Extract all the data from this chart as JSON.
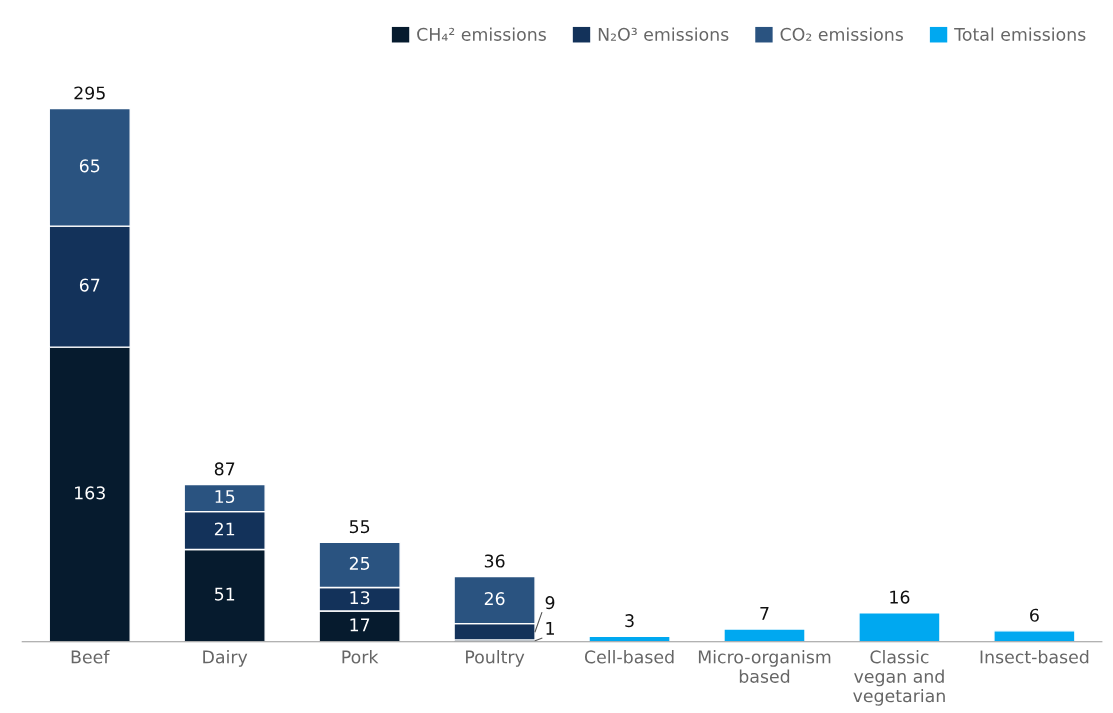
{
  "chart_data": {
    "type": "bar",
    "stacked": true,
    "legend": "top right",
    "grid": false,
    "categories": [
      "Beef",
      "Dairy",
      "Pork",
      "Poultry",
      "Cell-based",
      "Micro-organism\nbased",
      "Classic\nvegan and\nvegetarian",
      "Insect-based"
    ],
    "series": [
      {
        "name": "CH₄² emissions",
        "color": "#061b2e",
        "values": [
          163,
          51,
          17,
          1,
          null,
          null,
          null,
          null
        ],
        "value_labels": [
          "163",
          "51",
          "17",
          "1",
          null,
          null,
          null,
          null
        ]
      },
      {
        "name": "N₂O³ emissions",
        "color": "#13325a",
        "values": [
          67,
          21,
          13,
          9,
          null,
          null,
          null,
          null
        ],
        "value_labels": [
          "67",
          "21",
          "13",
          "9",
          null,
          null,
          null,
          null
        ]
      },
      {
        "name": "CO₂ emissions",
        "color": "#2a5380",
        "values": [
          65,
          15,
          25,
          26,
          null,
          null,
          null,
          null
        ],
        "value_labels": [
          "65",
          "15",
          "25",
          "26",
          null,
          null,
          null,
          null
        ]
      },
      {
        "name": "Total emissions",
        "color": "#00a8f0",
        "values": [
          null,
          null,
          null,
          null,
          3,
          7,
          16,
          6
        ]
      }
    ],
    "totals": [
      "295",
      "87",
      "55",
      "36",
      "3",
      "7",
      "16",
      "6"
    ]
  }
}
